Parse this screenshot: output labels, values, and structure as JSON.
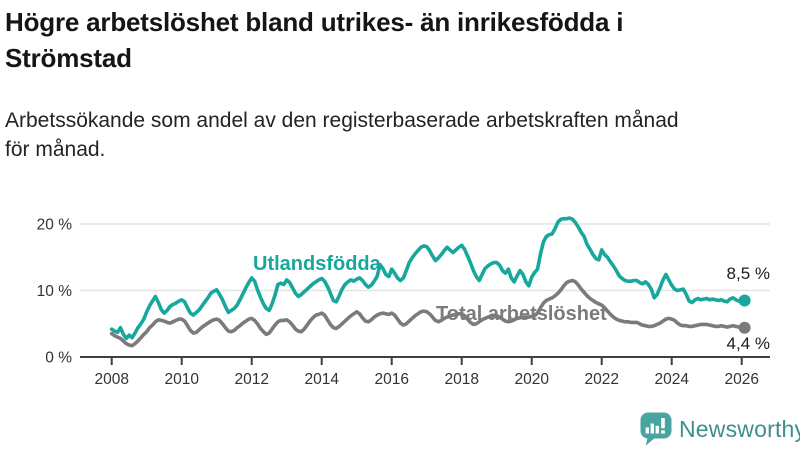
{
  "header": {
    "title_line1": "Högre arbetslöshet bland utrikes- än inrikesfödda i",
    "title_line2": "Strömstad",
    "subtitle_line1": "Arbetssökande som andel av den registerbaserade arbetskraften månad",
    "subtitle_line2": "för månad."
  },
  "chart_data": {
    "type": "line",
    "title": "Högre arbetslöshet bland utrikes- än inrikesfödda i Strömstad",
    "subtitle": "Arbetssökande som andel av den registerbaserade arbetskraften månad för månad.",
    "unit": "%",
    "x_start": 2008,
    "x_step_months": 1,
    "x_end": 2026.083,
    "xlim": [
      2008,
      2026.6
    ],
    "ylim": [
      0,
      22
    ],
    "grid": "horizontal",
    "legend_position": "inline-labels",
    "x_ticks": [
      2008,
      2010,
      2012,
      2014,
      2016,
      2018,
      2020,
      2022,
      2024,
      2026
    ],
    "y_ticks": [
      {
        "value": 0,
        "label": "0 %"
      },
      {
        "value": 10,
        "label": "10 %"
      },
      {
        "value": 20,
        "label": "20 %"
      }
    ],
    "series": [
      {
        "name": "Utlandsfödda",
        "color": "#18A79C",
        "end_label": "8,5 %",
        "end_value": 8.5,
        "values": [
          4.2,
          3.9,
          3.7,
          4.4,
          3.4,
          2.8,
          3.3,
          2.9,
          3.6,
          4.4,
          5.0,
          5.7,
          6.8,
          7.7,
          8.4,
          9.1,
          8.2,
          7.1,
          6.6,
          7.0,
          7.6,
          7.9,
          8.1,
          8.4,
          8.6,
          8.3,
          7.4,
          6.6,
          6.3,
          6.7,
          7.1,
          7.7,
          8.3,
          8.9,
          9.6,
          9.9,
          10.1,
          9.4,
          8.6,
          7.6,
          6.7,
          7.0,
          7.3,
          7.8,
          8.6,
          9.5,
          10.4,
          11.2,
          11.9,
          11.4,
          10.1,
          9.0,
          8.0,
          7.3,
          7.0,
          8.0,
          9.3,
          10.9,
          11.1,
          10.9,
          11.6,
          11.2,
          10.4,
          9.6,
          9.1,
          9.4,
          9.8,
          10.2,
          10.6,
          11.0,
          11.3,
          11.6,
          11.8,
          11.4,
          10.6,
          9.6,
          8.5,
          8.3,
          9.2,
          10.2,
          10.9,
          11.3,
          11.6,
          11.4,
          11.7,
          11.9,
          11.5,
          10.9,
          10.5,
          10.8,
          11.4,
          12.1,
          13.9,
          13.3,
          12.4,
          12.1,
          13.2,
          12.6,
          11.9,
          11.5,
          11.9,
          13.0,
          14.2,
          14.9,
          15.5,
          16.0,
          16.5,
          16.7,
          16.6,
          16.0,
          15.2,
          14.5,
          14.9,
          15.4,
          16.0,
          16.5,
          16.1,
          15.7,
          16.1,
          16.5,
          16.8,
          16.2,
          15.2,
          14.2,
          13.0,
          12.1,
          11.5,
          12.4,
          13.3,
          13.7,
          14.0,
          14.2,
          14.2,
          13.8,
          13.0,
          12.6,
          13.2,
          11.9,
          11.3,
          12.2,
          13.0,
          12.4,
          11.3,
          10.7,
          12.0,
          12.7,
          13.2,
          15.5,
          17.3,
          18.1,
          18.4,
          18.5,
          19.3,
          20.3,
          20.7,
          20.8,
          20.8,
          20.9,
          20.7,
          20.2,
          19.5,
          18.7,
          18.1,
          16.9,
          16.2,
          15.4,
          14.8,
          14.6,
          16.1,
          15.4,
          15.0,
          14.3,
          13.7,
          13.0,
          12.2,
          11.8,
          11.5,
          11.4,
          11.4,
          11.5,
          11.5,
          11.2,
          11.0,
          11.3,
          10.9,
          10.2,
          8.9,
          9.4,
          10.4,
          11.6,
          12.4,
          11.6,
          10.8,
          10.2,
          10.0,
          10.1,
          10.2,
          9.4,
          8.4,
          8.2,
          8.6,
          8.8,
          8.6,
          8.7,
          8.8,
          8.6,
          8.7,
          8.6,
          8.5,
          8.6,
          8.4,
          8.3,
          8.7,
          8.9,
          8.6,
          8.4,
          8.3,
          8.5
        ]
      },
      {
        "name": "Total arbetslöshet",
        "color": "#7B7B7B",
        "end_label": "4,4 %",
        "end_value": 4.4,
        "values": [
          3.5,
          3.2,
          3.0,
          2.8,
          2.4,
          2.0,
          1.8,
          1.7,
          2.0,
          2.4,
          2.9,
          3.4,
          3.8,
          4.4,
          4.8,
          5.3,
          5.6,
          5.5,
          5.4,
          5.2,
          5.1,
          5.3,
          5.5,
          5.7,
          5.7,
          5.4,
          4.7,
          4.0,
          3.6,
          3.7,
          4.1,
          4.5,
          4.8,
          5.1,
          5.4,
          5.6,
          5.7,
          5.5,
          5.0,
          4.4,
          3.9,
          3.8,
          4.0,
          4.4,
          4.7,
          5.1,
          5.4,
          5.7,
          5.8,
          5.5,
          5.0,
          4.3,
          3.8,
          3.4,
          3.6,
          4.2,
          4.8,
          5.3,
          5.5,
          5.5,
          5.6,
          5.3,
          4.8,
          4.2,
          3.9,
          3.8,
          4.2,
          4.8,
          5.4,
          5.9,
          6.3,
          6.4,
          6.6,
          6.3,
          5.6,
          4.9,
          4.4,
          4.3,
          4.6,
          5.0,
          5.4,
          5.8,
          6.2,
          6.5,
          6.8,
          6.5,
          5.9,
          5.4,
          5.3,
          5.6,
          6.0,
          6.3,
          6.5,
          6.6,
          6.5,
          6.4,
          6.6,
          6.3,
          5.7,
          5.1,
          4.8,
          5.0,
          5.4,
          5.8,
          6.2,
          6.5,
          6.8,
          6.9,
          6.8,
          6.5,
          6.0,
          5.5,
          5.3,
          5.5,
          5.8,
          6.0,
          6.2,
          6.3,
          6.4,
          6.5,
          6.5,
          6.2,
          5.7,
          5.2,
          4.9,
          5.0,
          5.3,
          5.6,
          5.8,
          6.0,
          6.1,
          6.2,
          6.2,
          6.0,
          5.7,
          5.4,
          5.3,
          5.4,
          5.6,
          5.8,
          5.9,
          6.0,
          6.0,
          6.0,
          6.1,
          6.2,
          6.6,
          7.4,
          8.1,
          8.5,
          8.7,
          8.9,
          9.2,
          9.6,
          10.1,
          10.7,
          11.2,
          11.4,
          11.5,
          11.3,
          10.8,
          10.2,
          9.7,
          9.2,
          8.8,
          8.5,
          8.2,
          8.0,
          7.8,
          7.4,
          6.9,
          6.4,
          6.0,
          5.7,
          5.5,
          5.4,
          5.3,
          5.3,
          5.2,
          5.2,
          5.2,
          5.0,
          4.8,
          4.7,
          4.6,
          4.6,
          4.7,
          4.9,
          5.1,
          5.4,
          5.7,
          5.8,
          5.7,
          5.5,
          5.1,
          4.8,
          4.7,
          4.7,
          4.6,
          4.6,
          4.7,
          4.8,
          4.9,
          4.9,
          4.9,
          4.8,
          4.7,
          4.6,
          4.6,
          4.7,
          4.6,
          4.5,
          4.6,
          4.7,
          4.6,
          4.5,
          4.4,
          4.4
        ]
      }
    ]
  },
  "footer": {
    "brand": "Newsworthy",
    "brand_color": "#3E8E8B",
    "icon": "newsworthy-chart-bubble-icon"
  }
}
